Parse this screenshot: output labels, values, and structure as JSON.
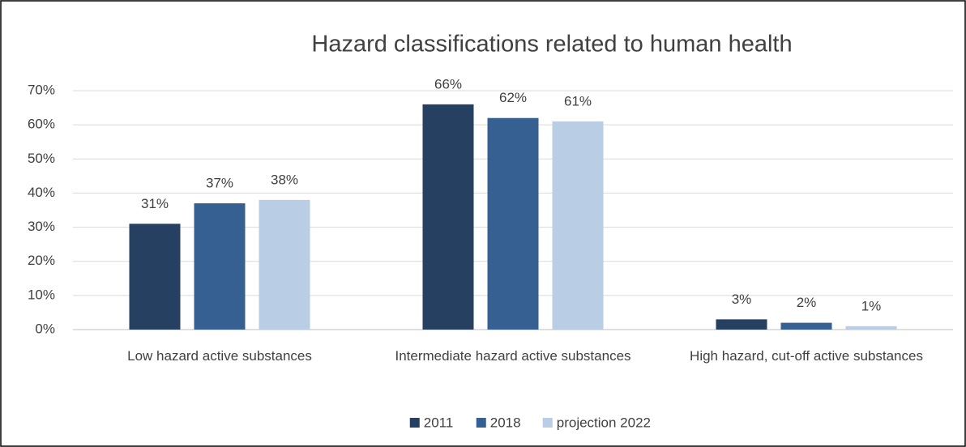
{
  "chart_data": {
    "type": "bar",
    "title": "Hazard classifications related to human health",
    "categories": [
      "Low hazard active substances",
      "Intermediate hazard active substances",
      "High hazard, cut-off active substances"
    ],
    "series": [
      {
        "name": "2011",
        "color": "#264061",
        "values": [
          31,
          66,
          3
        ],
        "value_labels": [
          "31%",
          "66%",
          "3%"
        ]
      },
      {
        "name": "2018",
        "color": "#376092",
        "values": [
          37,
          62,
          2
        ],
        "value_labels": [
          "37%",
          "62%",
          "2%"
        ]
      },
      {
        "name": "projection 2022",
        "color": "#b9cde5",
        "values": [
          38,
          61,
          1
        ],
        "value_labels": [
          "38%",
          "61%",
          "1%"
        ]
      }
    ],
    "ylim": [
      0,
      70
    ],
    "yticks": [
      {
        "value": 0,
        "label": "0%"
      },
      {
        "value": 10,
        "label": "10%"
      },
      {
        "value": 20,
        "label": "20%"
      },
      {
        "value": 30,
        "label": "30%"
      },
      {
        "value": 40,
        "label": "40%"
      },
      {
        "value": 50,
        "label": "50%"
      },
      {
        "value": 60,
        "label": "60%"
      },
      {
        "value": 70,
        "label": "70%"
      }
    ],
    "grid": true,
    "legend": "bottom"
  }
}
